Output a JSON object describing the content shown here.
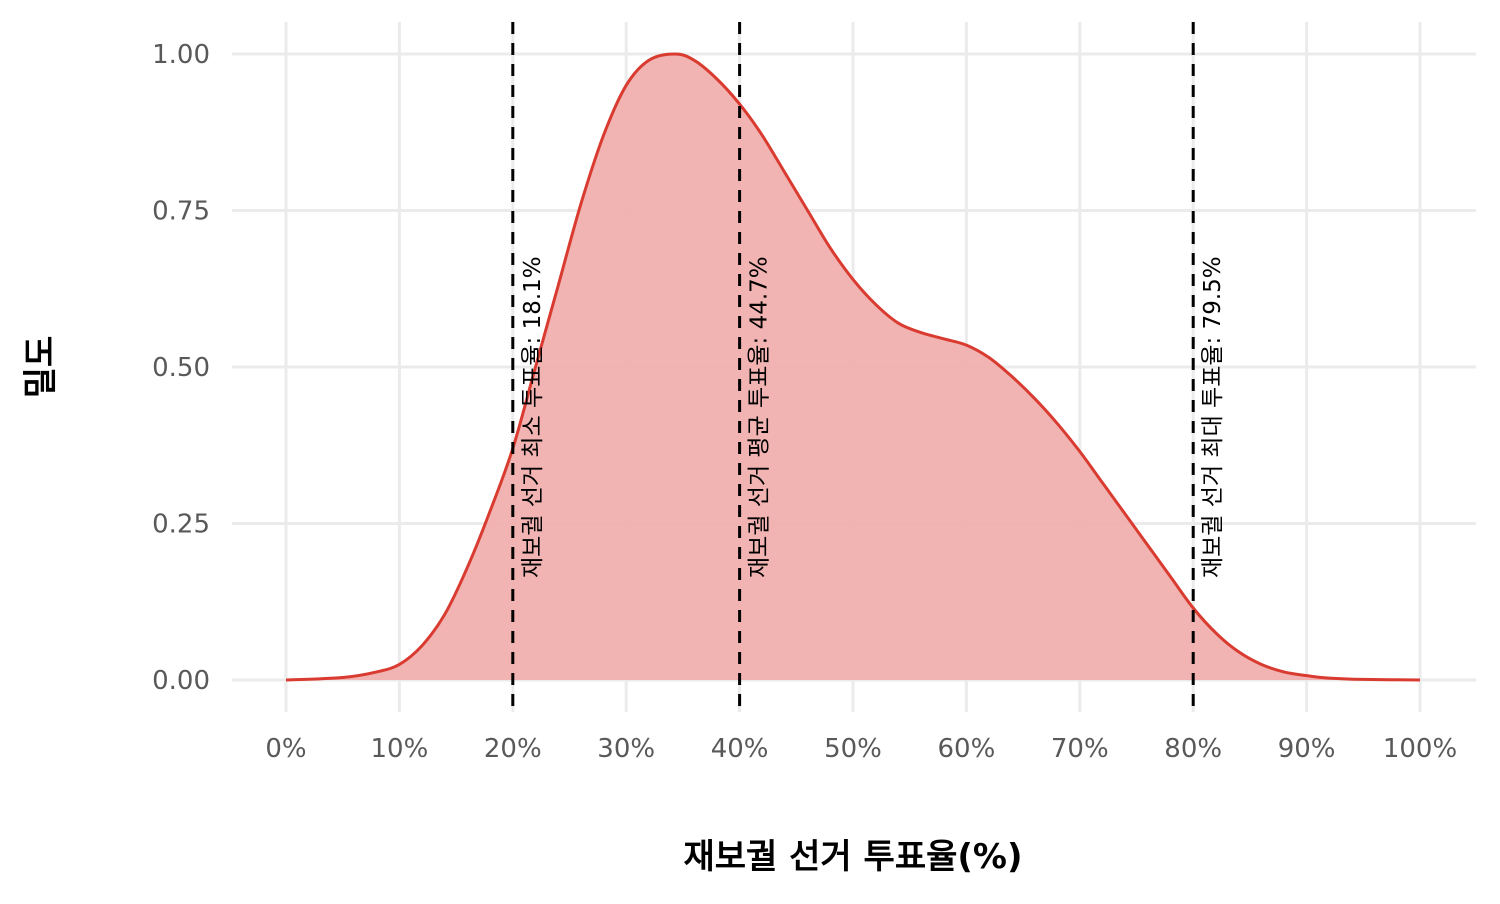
{
  "chart_data": {
    "type": "area",
    "title": "",
    "xlabel": "재보궐 선거 투표율(%)",
    "ylabel": "밀도",
    "xlim": [
      0,
      100
    ],
    "ylim": [
      0,
      1
    ],
    "x_ticks": [
      0,
      10,
      20,
      30,
      40,
      50,
      60,
      70,
      80,
      90,
      100
    ],
    "x_tick_labels": [
      "0%",
      "10%",
      "20%",
      "30%",
      "40%",
      "50%",
      "60%",
      "70%",
      "80%",
      "90%",
      "100%"
    ],
    "y_ticks": [
      0,
      0.25,
      0.5,
      0.75,
      1.0
    ],
    "y_tick_labels": [
      "0.00",
      "0.25",
      "0.50",
      "0.75",
      "1.00"
    ],
    "grid": true,
    "colors": {
      "fill": "#f0b0ae",
      "line": "#d93b30",
      "reference": "#000000",
      "grid": "#ebebeb"
    },
    "series": [
      {
        "x": [
          0,
          5,
          8,
          10,
          12,
          14,
          16,
          18,
          20,
          22,
          24,
          26,
          28,
          30,
          32,
          34.3,
          36,
          38,
          40,
          42,
          44,
          46,
          48,
          50,
          52,
          54,
          56,
          58,
          60,
          62,
          64,
          66,
          68,
          70,
          72,
          74,
          76,
          78,
          80,
          82,
          84,
          86,
          88,
          90,
          92,
          95,
          100
        ],
        "y": [
          0,
          0.004,
          0.013,
          0.025,
          0.055,
          0.105,
          0.18,
          0.27,
          0.37,
          0.5,
          0.63,
          0.76,
          0.87,
          0.95,
          0.99,
          1.0,
          0.99,
          0.96,
          0.92,
          0.87,
          0.81,
          0.75,
          0.69,
          0.64,
          0.6,
          0.57,
          0.555,
          0.545,
          0.535,
          0.515,
          0.485,
          0.45,
          0.41,
          0.365,
          0.315,
          0.265,
          0.215,
          0.165,
          0.115,
          0.075,
          0.045,
          0.025,
          0.013,
          0.007,
          0.003,
          0.001,
          0
        ]
      }
    ],
    "reference_lines": [
      {
        "x": 20,
        "label": "재보궐 선거 최소 투표율: 18.1%"
      },
      {
        "x": 40,
        "label": "재보궐 선거 평균 투표율: 44.7%"
      },
      {
        "x": 80,
        "label": "재보궐 선거 최대 투표율: 79.5%"
      }
    ]
  }
}
